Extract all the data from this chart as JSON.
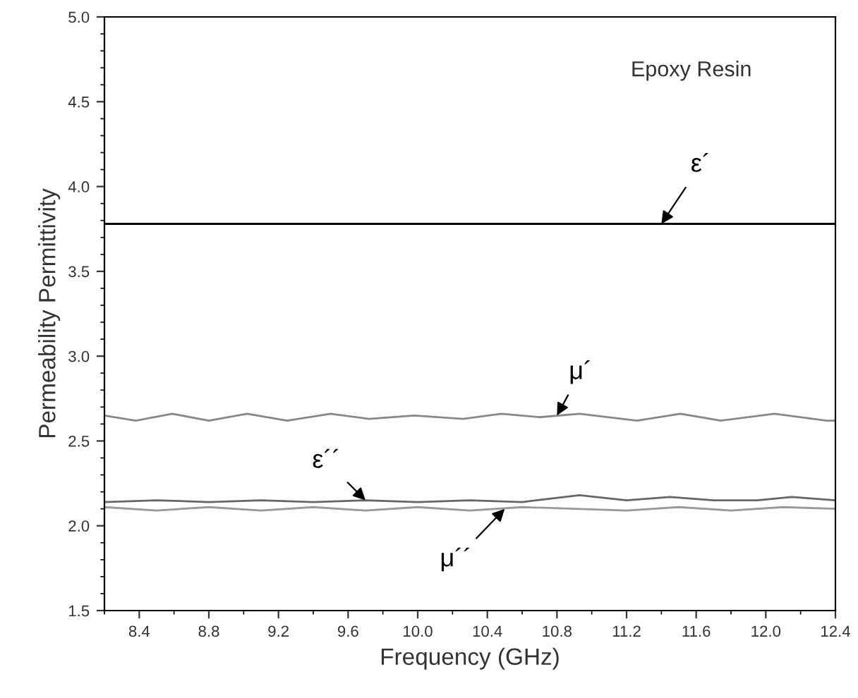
{
  "chart_data": {
    "type": "line",
    "xlabel": "Frequency (GHz)",
    "ylabel": "Permeability Permittivity",
    "xlim": [
      8.2,
      12.4
    ],
    "xticks": [
      8.4,
      8.8,
      9.2,
      9.6,
      {
        "value": 10,
        "label": "10.0"
      },
      10.4,
      10.8,
      11.2,
      11.6,
      {
        "value": 12,
        "label": "12.0"
      },
      12.4
    ],
    "ylim": [
      1.5,
      5.0
    ],
    "yticks": [
      1.5,
      {
        "value": 2,
        "label": "2.0"
      },
      2.5,
      {
        "value": 3,
        "label": "3.0"
      },
      3.5,
      {
        "value": 4,
        "label": "4.0"
      },
      4.5,
      {
        "value": 5,
        "label": "5.0"
      }
    ],
    "grid": false,
    "legend": false,
    "series": [
      {
        "color": "#000000",
        "x": [
          8.2,
          12.4
        ],
        "values": [
          3.78,
          3.78
        ]
      },
      {
        "color": "#888888",
        "x": [
          8.2,
          8.38,
          8.59,
          8.8,
          9.02,
          9.25,
          9.5,
          9.72,
          9.98,
          10.26,
          10.48,
          10.7,
          10.93,
          11.26,
          11.51,
          11.74,
          12.05,
          12.35,
          12.4
        ],
        "values": [
          2.65,
          2.62,
          2.66,
          2.62,
          2.66,
          2.62,
          2.66,
          2.63,
          2.65,
          2.63,
          2.66,
          2.64,
          2.66,
          2.62,
          2.66,
          2.62,
          2.66,
          2.62,
          2.62
        ]
      },
      {
        "color": "#666666",
        "x": [
          8.2,
          8.5,
          8.8,
          9.1,
          9.4,
          9.7,
          10.0,
          10.3,
          10.6,
          10.93,
          11.2,
          11.45,
          11.7,
          11.95,
          12.15,
          12.4
        ],
        "values": [
          2.14,
          2.15,
          2.14,
          2.15,
          2.14,
          2.15,
          2.14,
          2.15,
          2.14,
          2.18,
          2.15,
          2.17,
          2.15,
          2.15,
          2.17,
          2.15
        ]
      },
      {
        "color": "#999999",
        "x": [
          8.2,
          8.5,
          8.8,
          9.1,
          9.4,
          9.7,
          10.0,
          10.3,
          10.6,
          10.9,
          11.2,
          11.5,
          11.8,
          12.1,
          12.4
        ],
        "values": [
          2.11,
          2.09,
          2.11,
          2.09,
          2.11,
          2.09,
          2.11,
          2.09,
          2.11,
          2.1,
          2.09,
          2.11,
          2.09,
          2.11,
          2.1
        ]
      }
    ],
    "annotations": [
      "Epoxy Resin",
      {
        "text": "ε´",
        "x": 11.4,
        "y": 3.78
      },
      {
        "text": "μ´",
        "x": 10.8,
        "y": 2.65
      },
      {
        "text": "ε´´",
        "x": 9.7,
        "y": 2.15
      },
      {
        "text": "μ´´",
        "x": 10.5,
        "y": 2.1
      }
    ]
  }
}
